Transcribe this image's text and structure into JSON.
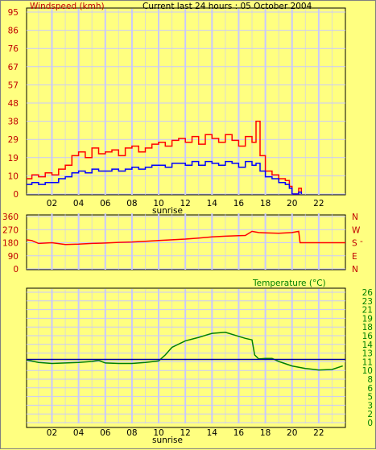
{
  "colors": {
    "background": "#ffff80",
    "grid": "#c8c8ff",
    "wind_speed": "#ff0000",
    "wind_avg": "#0000ff",
    "direction": "#ff0000",
    "temperature": "#008000",
    "temp_ref_line": "#0000a0",
    "axis_text": "#000000",
    "wind_label": "#c00000",
    "dir_label": "#c00000",
    "temp_label": "#008000"
  },
  "chart_data": [
    {
      "type": "line",
      "title": "Current last 24 hours : 05 October 2004",
      "ylabel": "Windspeed (kmh)",
      "xlabel": "sunrise",
      "x_ticks": [
        "02",
        "04",
        "06",
        "08",
        "10",
        "12",
        "14",
        "16",
        "18",
        "20",
        "22"
      ],
      "x_tick_values": [
        2,
        4,
        6,
        8,
        10,
        12,
        14,
        16,
        18,
        20,
        22
      ],
      "xlim": [
        0.1,
        24.0
      ],
      "y_ticks": [
        "0",
        "10",
        "19",
        "29",
        "38",
        "48",
        "57",
        "67",
        "76",
        "86",
        "95"
      ],
      "ylim": [
        0,
        95
      ],
      "grid": true,
      "series": [
        {
          "x": [
            0.1,
            0.5,
            1.0,
            1.5,
            2.0,
            2.5,
            3.0,
            3.5,
            4.0,
            4.5,
            5.0,
            5.5,
            6.0,
            6.5,
            7.0,
            7.5,
            8.0,
            8.5,
            9.0,
            9.5,
            10.0,
            10.5,
            11.0,
            11.5,
            12.0,
            12.5,
            13.0,
            13.5,
            14.0,
            14.5,
            15.0,
            15.5,
            16.0,
            16.5,
            17.0,
            17.3,
            17.6,
            18.0,
            18.5,
            19.0,
            19.5,
            19.8,
            20.0,
            20.5,
            20.7
          ],
          "values": [
            8,
            10,
            9,
            11,
            10,
            13,
            15,
            20,
            22,
            19,
            24,
            21,
            22,
            23,
            20,
            24,
            25,
            22,
            24,
            26,
            27,
            25,
            28,
            29,
            27,
            30,
            26,
            31,
            29,
            27,
            31,
            28,
            25,
            30,
            27,
            38,
            20,
            12,
            10,
            8,
            7,
            4,
            0,
            3,
            0
          ]
        },
        {
          "x": [
            0.1,
            0.5,
            1.0,
            1.5,
            2.0,
            2.5,
            3.0,
            3.5,
            4.0,
            4.5,
            5.0,
            5.5,
            6.0,
            6.5,
            7.0,
            7.5,
            8.0,
            8.5,
            9.0,
            9.5,
            10.0,
            10.5,
            11.0,
            11.5,
            12.0,
            12.5,
            13.0,
            13.5,
            14.0,
            14.5,
            15.0,
            15.5,
            16.0,
            16.5,
            17.0,
            17.3,
            17.6,
            18.0,
            18.5,
            19.0,
            19.5,
            19.8,
            20.0,
            20.5,
            20.7
          ],
          "values": [
            5,
            6,
            5,
            6,
            6,
            8,
            9,
            11,
            12,
            11,
            13,
            12,
            12,
            13,
            12,
            13,
            14,
            13,
            14,
            15,
            15,
            14,
            16,
            16,
            15,
            17,
            15,
            17,
            16,
            15,
            17,
            16,
            14,
            17,
            15,
            16,
            12,
            9,
            8,
            6,
            5,
            3,
            0,
            1,
            0
          ]
        }
      ]
    },
    {
      "type": "line",
      "y_ticks": [
        "360",
        "270",
        "180",
        "90",
        "0"
      ],
      "right_labels": [
        "N",
        "W",
        "S",
        "E",
        "N"
      ],
      "ylim": [
        0,
        360
      ],
      "xlim": [
        0.1,
        24.0
      ],
      "grid": true,
      "series": [
        {
          "x": [
            0.1,
            0.5,
            1.0,
            2.0,
            3.0,
            4.0,
            5.0,
            6.0,
            7.0,
            8.0,
            9.0,
            10.0,
            11.0,
            12.0,
            13.0,
            14.0,
            15.0,
            16.0,
            16.5,
            17.0,
            17.5,
            18.0,
            19.0,
            20.0,
            20.5,
            20.6,
            21.0,
            22.0,
            23.0,
            24.0
          ],
          "values": [
            200,
            195,
            175,
            180,
            168,
            170,
            175,
            178,
            182,
            185,
            190,
            195,
            200,
            205,
            212,
            220,
            225,
            228,
            230,
            258,
            250,
            248,
            245,
            250,
            258,
            180,
            180,
            180,
            180,
            180
          ]
        }
      ]
    },
    {
      "type": "line",
      "title": "Temperature (°C)",
      "xlabel": "sunrise",
      "x_ticks": [
        "02",
        "04",
        "06",
        "08",
        "10",
        "12",
        "14",
        "16",
        "18",
        "20",
        "22"
      ],
      "x_tick_values": [
        2,
        4,
        6,
        8,
        10,
        12,
        14,
        16,
        18,
        20,
        22
      ],
      "y_ticks": [
        "26",
        "23",
        "21",
        "19",
        "18",
        "16",
        "14",
        "13",
        "11",
        "10",
        "8",
        "6",
        "5",
        "3",
        "2",
        "0"
      ],
      "ylim": [
        0,
        26
      ],
      "xlim": [
        0.1,
        24.0
      ],
      "grid": true,
      "series": [
        {
          "x": [
            0.1,
            1.0,
            2.0,
            3.0,
            4.0,
            5.0,
            5.5,
            6.0,
            7.0,
            8.0,
            9.0,
            10.0,
            10.5,
            11.0,
            12.0,
            13.0,
            14.0,
            15.0,
            16.0,
            16.5,
            17.0,
            17.2,
            17.5,
            18.0,
            18.5,
            19.0,
            20.0,
            21.0,
            22.0,
            23.0,
            23.8
          ],
          "values": [
            12.5,
            12.0,
            11.8,
            11.9,
            12.0,
            12.2,
            12.4,
            11.9,
            11.8,
            11.8,
            12.0,
            12.3,
            13.5,
            15.0,
            16.3,
            17.0,
            17.8,
            18.0,
            17.2,
            16.8,
            16.5,
            13.5,
            12.7,
            12.8,
            12.8,
            12.2,
            11.3,
            10.8,
            10.5,
            10.6,
            11.3
          ]
        },
        {
          "x": [
            0.1,
            24.0
          ],
          "values": [
            12.6,
            12.6
          ]
        }
      ]
    }
  ]
}
